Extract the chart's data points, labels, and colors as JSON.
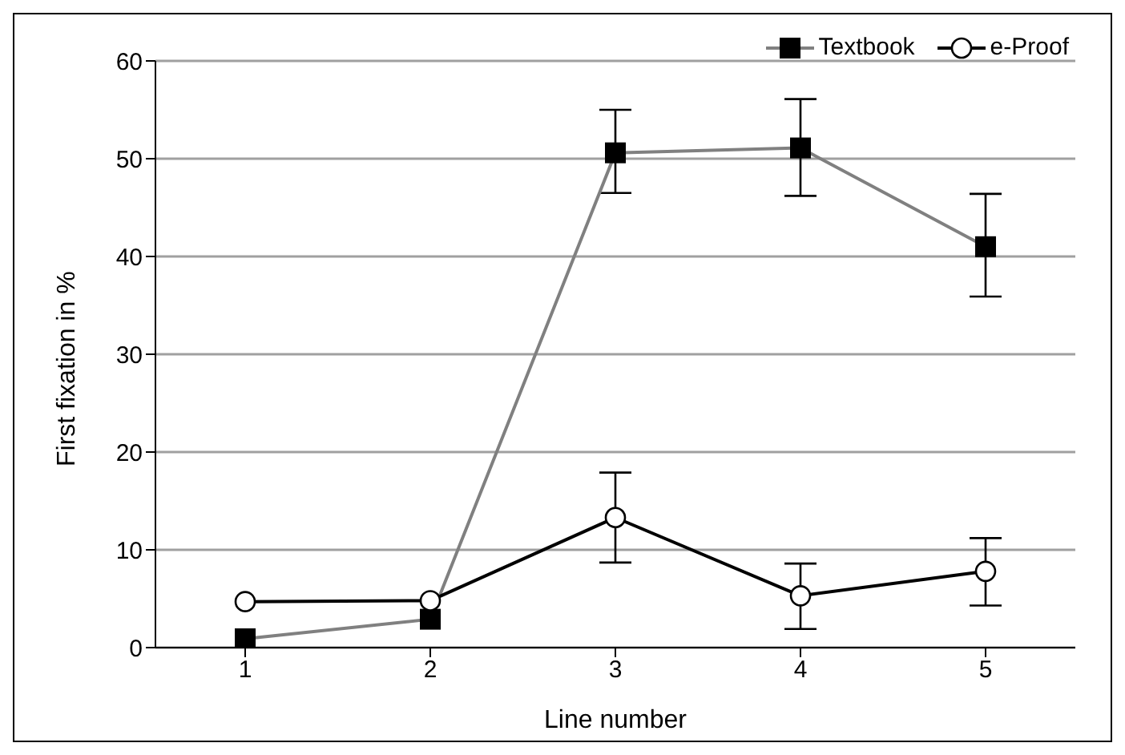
{
  "chart_data": {
    "type": "line",
    "xlabel": "Line number",
    "ylabel": "First fixation in %",
    "categories": [
      "1",
      "2",
      "3",
      "4",
      "5"
    ],
    "series": [
      {
        "name": "Textbook",
        "color": "#808080",
        "marker": "square",
        "values": [
          0.9,
          2.9,
          50.6,
          51.1,
          41.0
        ],
        "errors": [
          null,
          null,
          [
            46.5,
            55.0
          ],
          [
            46.2,
            56.1
          ],
          [
            35.9,
            46.4
          ]
        ]
      },
      {
        "name": "e-Proof",
        "color": "#000000",
        "marker": "circle",
        "values": [
          4.7,
          4.8,
          13.3,
          5.3,
          7.8
        ],
        "errors": [
          null,
          null,
          [
            8.7,
            17.9
          ],
          [
            1.9,
            8.6
          ],
          [
            4.3,
            11.2
          ]
        ]
      }
    ],
    "ylim": [
      0,
      60
    ],
    "yticks": [
      0,
      10,
      20,
      30,
      40,
      50,
      60
    ],
    "grid": "y",
    "legend": "top right",
    "line_style": "solid"
  }
}
